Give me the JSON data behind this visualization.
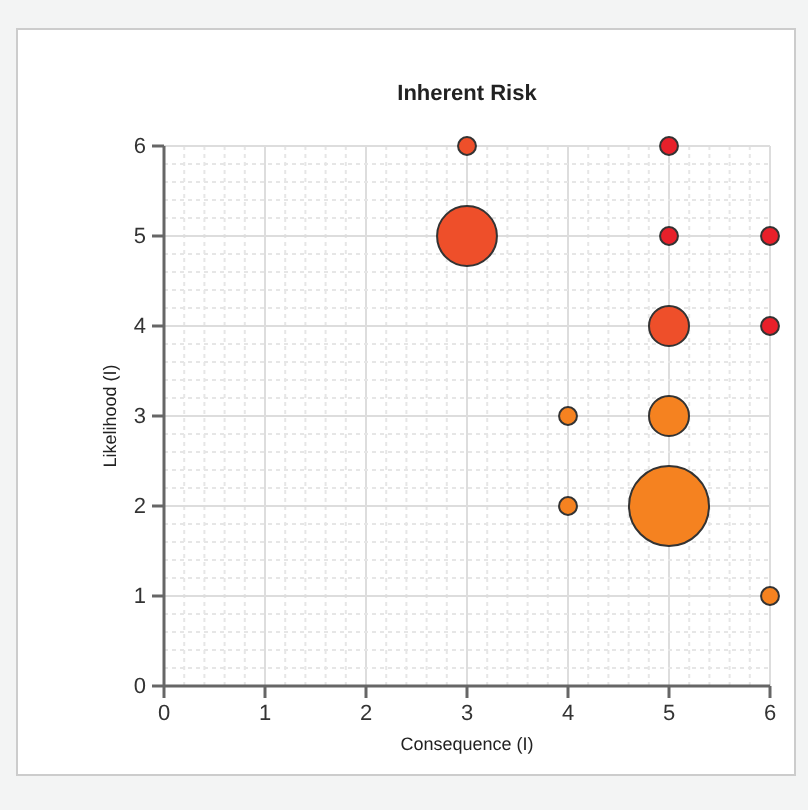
{
  "chart_data": {
    "type": "bubble",
    "title": "Inherent Risk",
    "xlabel": "Consequence (I)",
    "ylabel": "Likelihood (I)",
    "xlim": [
      0,
      6
    ],
    "xticks": [
      0,
      1,
      2,
      3,
      4,
      5,
      6
    ],
    "ylim": [
      0,
      6
    ],
    "yticks": [
      0,
      1,
      2,
      3,
      4,
      5,
      6
    ],
    "grid": true,
    "x": [
      3,
      5,
      3,
      5,
      6,
      5,
      6,
      4,
      5,
      4,
      5,
      6
    ],
    "values": [
      6,
      6,
      5,
      5,
      5,
      4,
      4,
      3,
      3,
      2,
      2,
      1
    ],
    "sizes": [
      0.05,
      0.05,
      0.56,
      0.05,
      0.05,
      0.25,
      0.05,
      0.05,
      0.25,
      0.05,
      1,
      0.05
    ],
    "colors": [
      "#ee4f2a",
      "#e8202a",
      "#ee4f2a",
      "#e8202a",
      "#e8202a",
      "#ee4f2a",
      "#e8202a",
      "#f58220",
      "#f58220",
      "#f58220",
      "#f58220",
      "#f58220"
    ]
  }
}
